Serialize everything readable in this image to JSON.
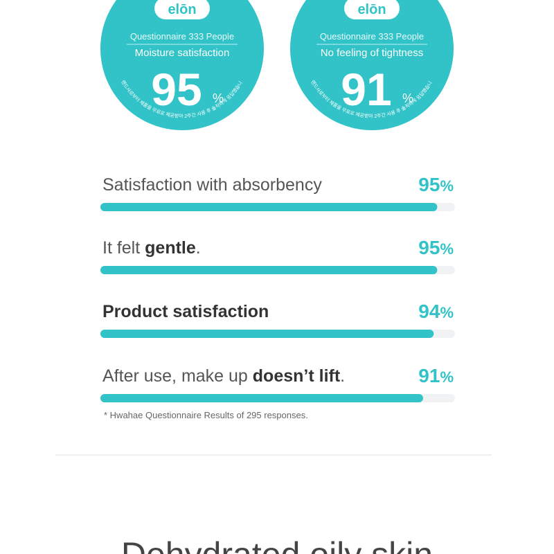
{
  "surveys": [
    {
      "brand": "elōn",
      "respondents": "Questionnaire 333 People",
      "metric": "Moisture satisfaction",
      "value": 95,
      "unit": "%",
      "disclaimer": "브랜드사로부터 제품을 무료로 제공받아 2주간 사용 후 솔직하게 응답했습니다."
    },
    {
      "brand": "elōn",
      "respondents": "Questionnaire 333 People",
      "metric": "No feeling of tightness",
      "value": 91,
      "unit": "%",
      "disclaimer": "브랜드사로부터 제품을 무료로 제공받아 2주간 사용 후 솔직하게 응답했습니다."
    }
  ],
  "results": [
    {
      "label": [
        {
          "text": "Satisfaction with absorbency"
        }
      ],
      "value": 95,
      "unit": "%"
    },
    {
      "label": [
        {
          "text": "It felt "
        },
        {
          "text": "gentle",
          "bold": true
        },
        {
          "text": "."
        }
      ],
      "value": 95,
      "unit": "%"
    },
    {
      "label": [
        {
          "text": "Product satisfaction",
          "bold": true
        }
      ],
      "value": 94,
      "unit": "%"
    },
    {
      "label": [
        {
          "text": "After use, make up "
        },
        {
          "text": "doesn’t lift",
          "bold": true
        },
        {
          "text": "."
        }
      ],
      "value": 91,
      "unit": "%"
    }
  ],
  "footnote": "* Hwahae Questionnaire Results of 295 responses.",
  "heading": "Dehydrated oily skin"
}
